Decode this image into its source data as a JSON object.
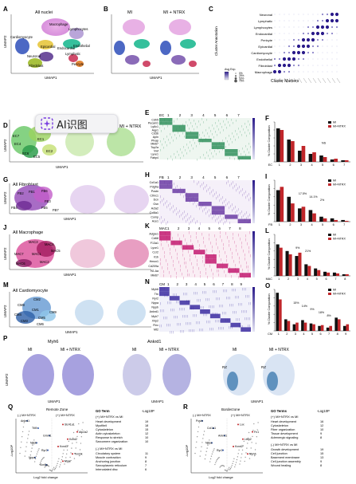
{
  "overlay": {
    "label": "AI识图",
    "icon": "ai-sparkle-icon"
  },
  "colors": {
    "mi": "#111111",
    "ntrx": "#c0262a",
    "heat_low": "#ffffff",
    "heat_high": "#3a1f8a"
  },
  "A": {
    "letter": "A",
    "title": "All nuclei",
    "xlab": "UMAP1",
    "ylab": "UMAP2",
    "clusters": [
      "Macrophage",
      "Lymphocytes",
      "Cardiomyocyte",
      "Epicardial",
      "Endocardial",
      "Endothelial",
      "Neuronal",
      "Fibroblast",
      "Lymphatic",
      "Pericyte"
    ]
  },
  "B": {
    "letter": "B",
    "t1": "MI",
    "t2": "MI + NTRX",
    "xlab": "UMAP1"
  },
  "C": {
    "letter": "C",
    "ylab": "Cluster Annotation",
    "xlab": "Cluster Markers",
    "rows": [
      "Neuronal",
      "Lymphatic",
      "Lymphocytes",
      "Endocardial",
      "Pericyte",
      "Epicardial",
      "Cardiomyocyte",
      "Endothelial",
      "Fibroblast",
      "Macrophage"
    ],
    "legend_title": "Avg Exp.",
    "legend_items": [
      "0%",
      "25%",
      "50%",
      "75%"
    ]
  },
  "D": {
    "letter": "D",
    "t1": "All Endothelial",
    "t2": "MI + NTRX",
    "xlab": "UMAP1",
    "ylab": "UMAP2",
    "clusters": [
      "EC7",
      "EC4",
      "EC3",
      "EC1",
      "EC6",
      "EC5",
      "EC2"
    ]
  },
  "E": {
    "letter": "E",
    "head": "EC",
    "nums": [
      "1",
      "2",
      "3",
      "4",
      "5",
      "6",
      "7"
    ],
    "genes": [
      "Cdh5",
      "Pecam1",
      "Ly6c1",
      "Aqp1",
      "Cd36",
      "Apln",
      "Plvap",
      "Mki67",
      "Top2a",
      "Vwf",
      "Lyve1",
      "Fabp4"
    ]
  },
  "F": {
    "letter": "F",
    "ylab": "% Cluster Composition",
    "xhead": "EC",
    "legend": [
      "MI",
      "MI+NTRX"
    ],
    "annot": "NS",
    "chart_data": {
      "type": "bar",
      "categories": [
        "1",
        "2",
        "3",
        "4",
        "5",
        "6",
        "7"
      ],
      "series": [
        {
          "name": "MI",
          "values": [
            42,
            28,
            14,
            10,
            8,
            3,
            2
          ]
        },
        {
          "name": "MI+NTRX",
          "values": [
            40,
            26,
            20,
            12,
            6,
            4,
            2
          ]
        }
      ],
      "ylabel": "% Cluster Composition",
      "ylim": [
        0,
        50
      ]
    }
  },
  "G": {
    "letter": "G",
    "title": "All Fibroblast",
    "xlab": "UMAP1",
    "ylab": "UMAP2",
    "clusters": [
      "FB1",
      "FB2",
      "FB6",
      "FB3",
      "FB5",
      "FB4",
      "FB7"
    ]
  },
  "H": {
    "letter": "H",
    "head": "FB",
    "nums": [
      "1",
      "2",
      "3",
      "4",
      "5",
      "6",
      "7"
    ],
    "genes": [
      "Col1a1",
      "Pdgfra",
      "Postn",
      "Cthrc1",
      "Dcn",
      "Gsn",
      "Acta2",
      "Col8a1",
      "Comp",
      "Ace1"
    ]
  },
  "I": {
    "letter": "I",
    "ylab": "% Cluster Composition",
    "xhead": "FB",
    "legend": [
      "MI",
      "MI+NTRX"
    ],
    "annots": [
      "17.5%",
      "14.1%",
      "2%"
    ],
    "chart_data": {
      "type": "bar",
      "categories": [
        "1",
        "2",
        "3",
        "4",
        "5",
        "6",
        "7"
      ],
      "series": [
        {
          "name": "MI",
          "values": [
            38,
            30,
            16,
            14,
            6,
            4,
            2
          ]
        },
        {
          "name": "MI+NTRX",
          "values": [
            42,
            22,
            18,
            10,
            4,
            2,
            1
          ]
        }
      ],
      "ylabel": "% Cluster Composition",
      "ylim": [
        0,
        50
      ]
    }
  },
  "J": {
    "letter": "J",
    "title": "All Macrophage",
    "xlab": "UMAP1",
    "ylab": "UMAP2",
    "clusters": [
      "MAC3",
      "MAC4",
      "MAC5",
      "MAC7",
      "MAC1",
      "MAC6",
      "MAC2"
    ]
  },
  "K": {
    "letter": "K",
    "head": "MAC",
    "nums": [
      "1",
      "2",
      "3",
      "4",
      "5",
      "6",
      "7",
      "8"
    ],
    "genes": [
      "Adgre1",
      "Cd68",
      "F13a1",
      "Lyve1",
      "Ccr2",
      "Il1b",
      "Hmox1",
      "Cd209a",
      "H2-Aa",
      "Mki67"
    ]
  },
  "L": {
    "letter": "L",
    "ylab": "% Cluster Composition",
    "xhead": "MAC",
    "legend": [
      "MI",
      "MI+NTRX"
    ],
    "annots": [
      "9%",
      "21%"
    ],
    "chart_data": {
      "type": "bar",
      "categories": [
        "1",
        "2",
        "3",
        "4",
        "5",
        "6",
        "7",
        "8"
      ],
      "series": [
        {
          "name": "MI",
          "values": [
            38,
            30,
            24,
            14,
            9,
            5,
            4,
            2
          ]
        },
        {
          "name": "MI+NTRX",
          "values": [
            34,
            26,
            28,
            12,
            7,
            4,
            3,
            2
          ]
        }
      ],
      "ylabel": "% Cluster Composition",
      "ylim": [
        0,
        50
      ]
    }
  },
  "M": {
    "letter": "M",
    "title": "All Cardiomyocyte",
    "xlab": "UMAP1",
    "ylab": "UMAP2",
    "clusters": [
      "CM2",
      "CM8",
      "CM1",
      "CM4",
      "CM3",
      "CM9",
      "CM5",
      "CM6"
    ]
  },
  "N": {
    "letter": "N",
    "head": "CM",
    "nums": [
      "1",
      "2",
      "3",
      "4",
      "5",
      "6",
      "7",
      "8",
      "9"
    ],
    "genes": [
      "Myh6",
      "Ttn",
      "Ryr2",
      "Nppa",
      "Nppb",
      "Ankrd1",
      "Myh7",
      "Xirp2",
      "Flnc",
      "Mt2"
    ]
  },
  "O": {
    "letter": "O",
    "ylab": "% Cluster Composition",
    "xhead": "CM",
    "legend": [
      "MI",
      "MI+NTRX"
    ],
    "annots": [
      "15%",
      "14%",
      "9%",
      "18%",
      "8%"
    ],
    "chart_data": {
      "type": "bar",
      "categories": [
        "1",
        "2",
        "3",
        "4",
        "5",
        "6",
        "7",
        "8",
        "9"
      ],
      "series": [
        {
          "name": "MI",
          "values": [
            46,
            14,
            8,
            13,
            9,
            6,
            4,
            16,
            6
          ]
        },
        {
          "name": "MI+NTRX",
          "values": [
            38,
            12,
            10,
            10,
            8,
            7,
            6,
            14,
            8
          ]
        }
      ],
      "ylabel": "% Cluster Composition",
      "ylim": [
        0,
        50
      ]
    }
  },
  "P": {
    "letter": "P",
    "g1": "Myh6",
    "g2": "Ankrd1",
    "t_mi": "MI",
    "t_ntrx": "MI + NTRX",
    "rz": "RZ",
    "xlab": "UMAP1",
    "ylab": "UMAP2"
  },
  "Q": {
    "letter": "Q",
    "zone": "Remote Zone",
    "left": "(-) MI+NTRX",
    "right": "(+) MI+NTRX",
    "xlab": "Log2 fold change",
    "ylab": "-Log10P",
    "genes": [
      "Ankrd1",
      "Slc41a1",
      "Ttll9",
      "Atp2a2",
      "Gmnt1",
      "Kcnd2",
      "Nppb",
      "Kcnd3",
      "Ryr2",
      "Tnni3k",
      "Nppa",
      "Mpp7",
      "Scn5a"
    ],
    "go": {
      "head": "GO Term",
      "col": "-Log10P",
      "up_head": "(+) MI+NTRX vs MI",
      "up": [
        [
          "Heart development",
          "19"
        ],
        [
          "Myofibril",
          "18"
        ],
        [
          "Cytoskeleton",
          "15"
        ],
        [
          "Actin cytoskeleton",
          "12"
        ],
        [
          "Response to stretch",
          "10"
        ],
        [
          "Sarcomere organization",
          "10"
        ]
      ],
      "down_head": "(-) MI+NTRX vs MI",
      "down": [
        [
          "Circulatory system",
          "11"
        ],
        [
          "Muscle contraction",
          "9"
        ],
        [
          "Anchoring junction",
          "8"
        ],
        [
          "Sarcoplasmic reticulum",
          "7"
        ],
        [
          "Intercalated disc",
          "6"
        ]
      ]
    }
  },
  "R": {
    "letter": "R",
    "zone": "Borderzone",
    "left": "(-) MI+NTRX",
    "right": "(+) MI+NTRX",
    "xlab": "Log2 fold change",
    "ylab": "-Log10P",
    "genes": [
      "Postn",
      "Lox",
      "Col1a1",
      "Fn1",
      "Ankrd1",
      "Ltbp2",
      "Nppa",
      "Kcnd2",
      "Ryr2",
      "Myh6"
    ],
    "go": {
      "head": "GO Terms",
      "col": "-Log10P",
      "up_head": "(+) MI+NTRX vs MI",
      "up": [
        [
          "Heart development",
          "16"
        ],
        [
          "Cytoskeleton",
          "12"
        ],
        [
          "Fiber organization",
          "10"
        ],
        [
          "Tissue development",
          "9"
        ],
        [
          "Adrenergic signaling",
          "8"
        ]
      ],
      "down_head": "(-) MI+NTRX vs MI",
      "down": [
        [
          "Growth development",
          "19"
        ],
        [
          "Cell junction",
          "15"
        ],
        [
          "Basement membrane",
          "13"
        ],
        [
          "Cell junction assembly",
          "9"
        ],
        [
          "Wound healing",
          "8"
        ]
      ]
    }
  }
}
